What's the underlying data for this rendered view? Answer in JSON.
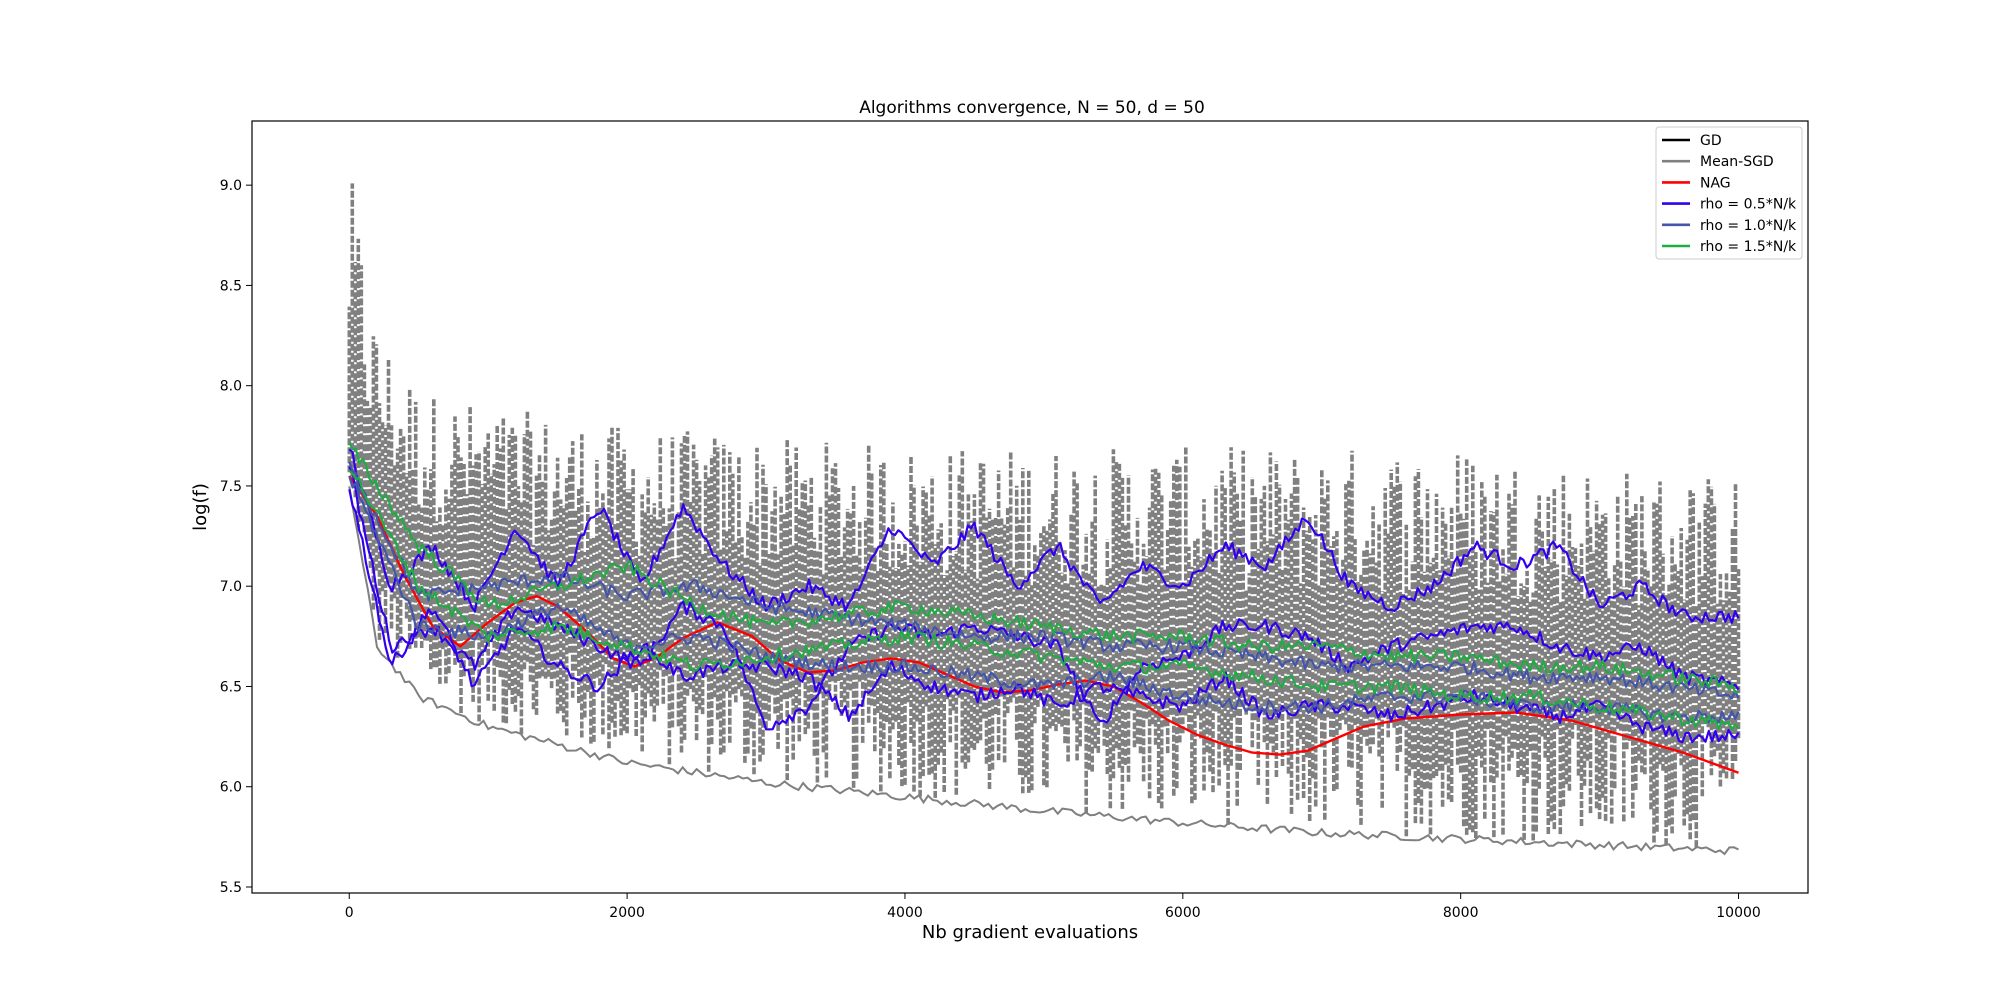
{
  "chart_data": {
    "type": "line",
    "title": "Algorithms convergence, N = 50, d = 50",
    "xlabel": "Nb gradient evaluations",
    "ylabel": "log(f)",
    "xlim": [
      -700,
      10500
    ],
    "ylim": [
      5.47,
      9.32
    ],
    "xticks": [
      0,
      2000,
      4000,
      6000,
      8000,
      10000
    ],
    "xtick_labels": [
      "0",
      "2000",
      "4000",
      "6000",
      "8000",
      "10000"
    ],
    "yticks": [
      5.5,
      6.0,
      6.5,
      7.0,
      7.5,
      8.0,
      8.5,
      9.0
    ],
    "ytick_labels": [
      "5.5",
      "6.0",
      "6.5",
      "7.0",
      "7.5",
      "8.0",
      "8.5",
      "9.0"
    ],
    "grid": false,
    "legend_position": "top-right",
    "legend": [
      {
        "label": "GD",
        "color": "#000000"
      },
      {
        "label": "Mean-SGD",
        "color": "#808080"
      },
      {
        "label": "NAG",
        "color": "#ff0000"
      },
      {
        "label": "rho = 0.5*N/k",
        "color": "#3300ee"
      },
      {
        "label": "rho = 1.0*N/k",
        "color": "#4455aa"
      },
      {
        "label": "rho = 1.5*N/k",
        "color": "#22aa44"
      }
    ],
    "series": [
      {
        "name": "Mean-SGD",
        "color": "#808080",
        "style": "noisy band (many SGD runs)",
        "x": [
          0,
          200,
          500,
          1000,
          2000,
          3000,
          4000,
          5000,
          6000,
          7000,
          8000,
          9000,
          10000
        ],
        "lower": [
          7.5,
          6.7,
          6.45,
          6.3,
          6.12,
          6.02,
          5.95,
          5.88,
          5.82,
          5.77,
          5.74,
          5.71,
          5.68
        ],
        "upper": [
          9.1,
          8.3,
          8.0,
          7.9,
          7.8,
          7.75,
          7.7,
          7.7,
          7.7,
          7.7,
          7.7,
          7.6,
          7.55
        ],
        "mean": [
          7.65,
          7.3,
          7.05,
          6.95,
          6.85,
          6.8,
          6.75,
          6.7,
          6.68,
          6.65,
          6.62,
          6.6,
          6.58
        ]
      },
      {
        "name": "NAG",
        "color": "#ff0000",
        "x": [
          0,
          200,
          400,
          600,
          800,
          1000,
          1200,
          1350,
          1500,
          1700,
          1900,
          2050,
          2200,
          2400,
          2650,
          2900,
          3100,
          3300,
          3500,
          3700,
          3900,
          4100,
          4300,
          4500,
          4700,
          4900,
          5100,
          5300,
          5500,
          5700,
          5900,
          6100,
          6300,
          6500,
          6700,
          6900,
          7100,
          7300,
          7600,
          8000,
          8400,
          8800,
          9200,
          9600,
          10000
        ],
        "y": [
          7.55,
          7.35,
          7.05,
          6.8,
          6.7,
          6.82,
          6.92,
          6.95,
          6.9,
          6.78,
          6.64,
          6.6,
          6.64,
          6.74,
          6.82,
          6.75,
          6.63,
          6.57,
          6.58,
          6.62,
          6.64,
          6.62,
          6.56,
          6.5,
          6.47,
          6.48,
          6.51,
          6.53,
          6.5,
          6.42,
          6.33,
          6.26,
          6.21,
          6.17,
          6.16,
          6.18,
          6.24,
          6.3,
          6.34,
          6.36,
          6.37,
          6.33,
          6.25,
          6.17,
          6.07
        ]
      },
      {
        "name": "rho = 0.5*N/k",
        "color": "#3300ee",
        "x": [
          0,
          300,
          600,
          900,
          1200,
          1500,
          1800,
          2100,
          2400,
          2700,
          3000,
          3300,
          3600,
          3900,
          4200,
          4500,
          4800,
          5100,
          5400,
          5700,
          6000,
          6300,
          6600,
          6900,
          7200,
          7500,
          7800,
          8100,
          8400,
          8700,
          9000,
          9300,
          9600,
          10000
        ],
        "y": [
          7.7,
          7.0,
          7.2,
          6.9,
          7.3,
          7.0,
          7.4,
          7.0,
          7.4,
          7.1,
          6.9,
          7.0,
          6.9,
          7.3,
          7.1,
          7.3,
          7.0,
          7.2,
          6.9,
          7.1,
          7.0,
          7.2,
          7.1,
          7.35,
          7.0,
          6.9,
          7.0,
          7.2,
          7.1,
          7.2,
          6.9,
          7.0,
          6.85,
          6.85
        ]
      },
      {
        "name": "rho = 0.5*N/k",
        "color": "#3300ee",
        "x": [
          0,
          300,
          600,
          900,
          1200,
          1500,
          1800,
          2100,
          2400,
          2700,
          3000,
          3300,
          3600,
          3900,
          4200,
          4500,
          4800,
          5100,
          5400,
          5700,
          6000,
          6300,
          6600,
          6900,
          7200,
          7500,
          7800,
          8100,
          8400,
          8700,
          9000,
          9300,
          9600,
          10000
        ],
        "y": [
          7.6,
          6.7,
          6.8,
          6.6,
          6.9,
          6.8,
          6.7,
          6.6,
          6.9,
          6.8,
          6.3,
          6.4,
          6.7,
          6.8,
          6.75,
          6.8,
          6.75,
          6.7,
          6.3,
          6.6,
          6.65,
          6.8,
          6.8,
          6.75,
          6.6,
          6.7,
          6.75,
          6.8,
          6.8,
          6.7,
          6.65,
          6.7,
          6.55,
          6.5
        ]
      },
      {
        "name": "rho = 0.5*N/k",
        "color": "#3300ee",
        "x": [
          0,
          300,
          600,
          900,
          1200,
          1500,
          1800,
          2100,
          2400,
          2700,
          3000,
          3300,
          3600,
          3900,
          4200,
          4500,
          4800,
          5100,
          5400,
          5700,
          6000,
          6300,
          6600,
          6900,
          7200,
          7500,
          7800,
          8100,
          8400,
          8700,
          9000,
          9300,
          9600,
          10000
        ],
        "y": [
          7.5,
          6.6,
          6.9,
          6.5,
          6.8,
          6.6,
          6.5,
          6.7,
          6.55,
          6.6,
          6.6,
          6.55,
          6.35,
          6.6,
          6.5,
          6.45,
          6.5,
          6.4,
          6.5,
          6.45,
          6.4,
          6.55,
          6.35,
          6.4,
          6.4,
          6.35,
          6.4,
          6.45,
          6.4,
          6.35,
          6.4,
          6.3,
          6.25,
          6.25
        ]
      },
      {
        "name": "rho = 1.0*N/k",
        "color": "#4455aa",
        "x": [
          0,
          500,
          1000,
          1500,
          2000,
          2500,
          3000,
          3500,
          4000,
          4500,
          5000,
          5500,
          6000,
          6500,
          7000,
          7500,
          8000,
          8500,
          9000,
          9500,
          10000
        ],
        "y": [
          7.6,
          6.95,
          7.0,
          7.05,
          6.95,
          7.0,
          6.9,
          6.85,
          6.8,
          6.75,
          6.75,
          6.7,
          6.7,
          6.65,
          6.6,
          6.6,
          6.6,
          6.55,
          6.55,
          6.5,
          6.45
        ]
      },
      {
        "name": "rho = 1.0*N/k",
        "color": "#4455aa",
        "x": [
          0,
          500,
          1000,
          1500,
          2000,
          2500,
          3000,
          3500,
          4000,
          4500,
          5000,
          5500,
          6000,
          6500,
          7000,
          7500,
          8000,
          8500,
          9000,
          9500,
          10000
        ],
        "y": [
          7.55,
          6.8,
          6.75,
          6.9,
          6.7,
          6.75,
          6.65,
          6.6,
          6.6,
          6.55,
          6.5,
          6.55,
          6.45,
          6.4,
          6.4,
          6.45,
          6.45,
          6.4,
          6.4,
          6.35,
          6.35
        ]
      },
      {
        "name": "rho = 1.5*N/k",
        "color": "#22aa44",
        "x": [
          0,
          500,
          1000,
          1500,
          2000,
          2500,
          3000,
          3500,
          4000,
          4500,
          5000,
          5500,
          6000,
          6500,
          7000,
          7500,
          8000,
          8500,
          9000,
          9500,
          10000
        ],
        "y": [
          7.7,
          7.2,
          6.9,
          7.0,
          7.1,
          6.9,
          6.8,
          6.85,
          6.9,
          6.85,
          6.8,
          6.75,
          6.75,
          6.7,
          6.7,
          6.65,
          6.65,
          6.6,
          6.6,
          6.55,
          6.5
        ]
      },
      {
        "name": "rho = 1.5*N/k",
        "color": "#22aa44",
        "x": [
          0,
          500,
          1000,
          1500,
          2000,
          2500,
          3000,
          3500,
          4000,
          4500,
          5000,
          5500,
          6000,
          6500,
          7000,
          7500,
          8000,
          8500,
          9000,
          9500,
          10000
        ],
        "y": [
          7.6,
          7.0,
          6.75,
          6.8,
          6.7,
          6.6,
          6.65,
          6.7,
          6.75,
          6.7,
          6.65,
          6.6,
          6.6,
          6.55,
          6.5,
          6.5,
          6.45,
          6.45,
          6.4,
          6.35,
          6.3
        ]
      }
    ]
  }
}
